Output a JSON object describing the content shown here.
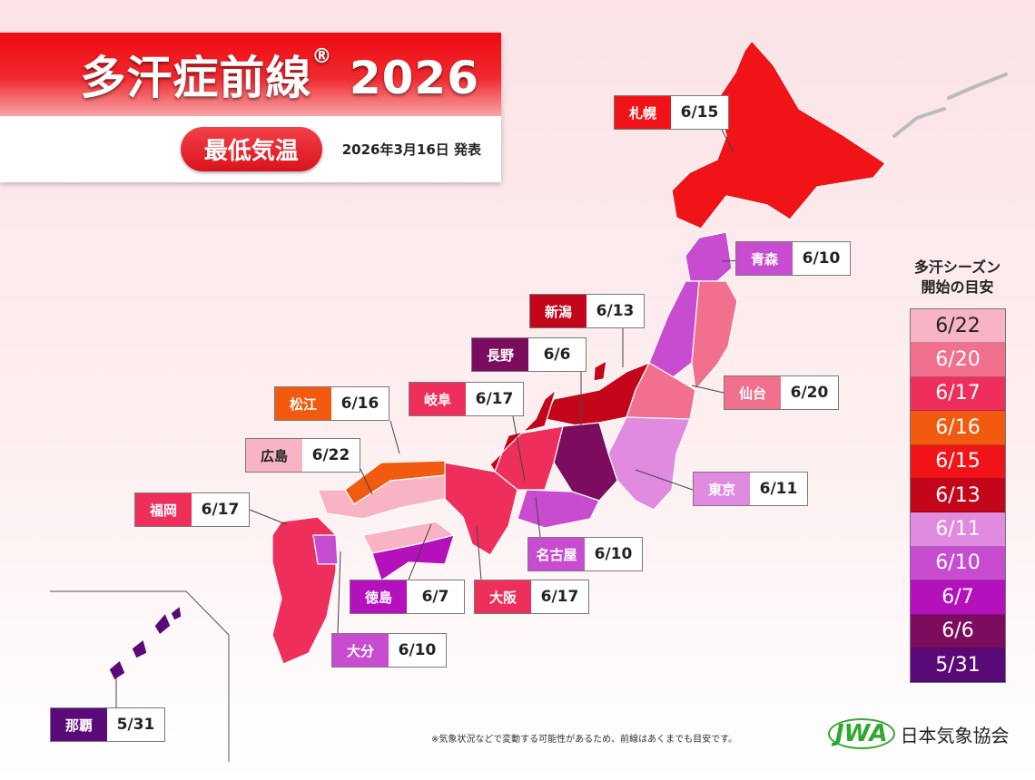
{
  "header": {
    "title": "多汗症前線",
    "registered": "®",
    "year": "2026",
    "category": "最低気温",
    "published": "2026年3月16日 発表"
  },
  "colors": {
    "6/22": "#f8b4c4",
    "6/20": "#f0708e",
    "6/17": "#ee2f5c",
    "6/16": "#f25a10",
    "6/15": "#f01418",
    "6/13": "#c4061a",
    "6/11": "#e08ae0",
    "6/10": "#c84cd0",
    "6/7": "#b410bc",
    "6/6": "#7c0c5e",
    "5/31": "#5a0a78"
  },
  "legend": {
    "title_line1": "多汗シーズン",
    "title_line2": "開始の目安",
    "items": [
      "6/22",
      "6/20",
      "6/17",
      "6/16",
      "6/15",
      "6/13",
      "6/11",
      "6/10",
      "6/7",
      "6/6",
      "5/31"
    ]
  },
  "cities": [
    {
      "name": "札幌",
      "date": "6/15"
    },
    {
      "name": "青森",
      "date": "6/10"
    },
    {
      "name": "新潟",
      "date": "6/13"
    },
    {
      "name": "長野",
      "date": "6/6"
    },
    {
      "name": "松江",
      "date": "6/16"
    },
    {
      "name": "岐阜",
      "date": "6/17"
    },
    {
      "name": "仙台",
      "date": "6/20"
    },
    {
      "name": "広島",
      "date": "6/22"
    },
    {
      "name": "福岡",
      "date": "6/17"
    },
    {
      "name": "東京",
      "date": "6/11"
    },
    {
      "name": "名古屋",
      "date": "6/10"
    },
    {
      "name": "徳島",
      "date": "6/7"
    },
    {
      "name": "大阪",
      "date": "6/17"
    },
    {
      "name": "大分",
      "date": "6/10"
    },
    {
      "name": "那覇",
      "date": "5/31"
    }
  ],
  "footer": {
    "note": "※気象状況などで変動する可能性があるため、前線はあくまでも目安です。",
    "logo_mark": "JWA",
    "org": "日本気象協会"
  }
}
